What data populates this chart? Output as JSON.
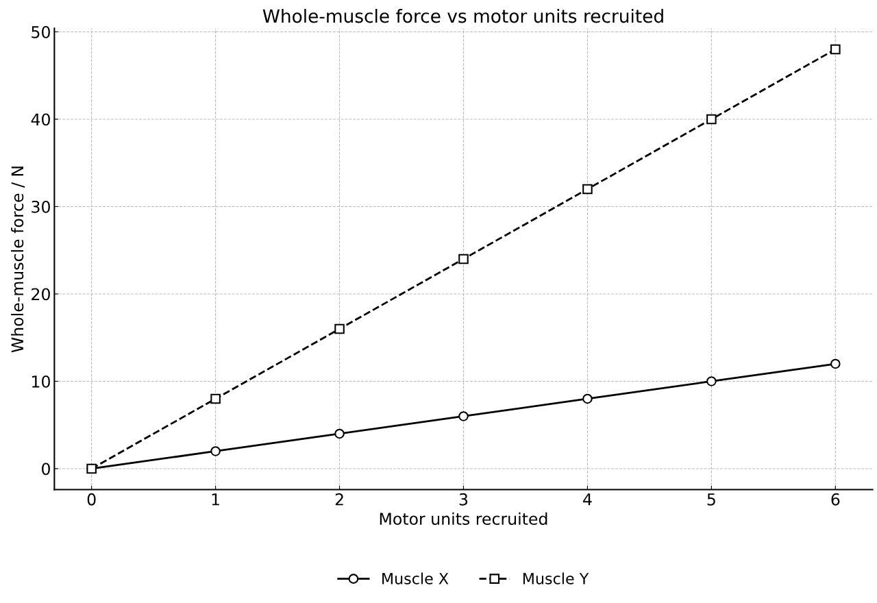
{
  "chart_data": {
    "type": "line",
    "title": "Whole-muscle force vs motor units recruited",
    "xlabel": "Motor units recruited",
    "ylabel": "Whole-muscle force / N",
    "x": [
      0,
      1,
      2,
      3,
      4,
      5,
      6
    ],
    "series": [
      {
        "name": "Muscle X",
        "color": "#000000",
        "values": [
          0,
          2,
          4,
          6,
          8,
          10,
          12
        ],
        "marker": "circle",
        "line_style": "solid"
      },
      {
        "name": "Muscle Y",
        "color": "#000000",
        "values": [
          0,
          8,
          16,
          24,
          32,
          40,
          48
        ],
        "marker": "square",
        "line_style": "dashed"
      }
    ],
    "xlim": [
      -0.3,
      6.3
    ],
    "ylim": [
      -2.4,
      50.4
    ],
    "xticks": [
      0,
      1,
      2,
      3,
      4,
      5,
      6
    ],
    "yticks": [
      0,
      10,
      20,
      30,
      40,
      50
    ],
    "grid": true,
    "legend": "bottom"
  }
}
